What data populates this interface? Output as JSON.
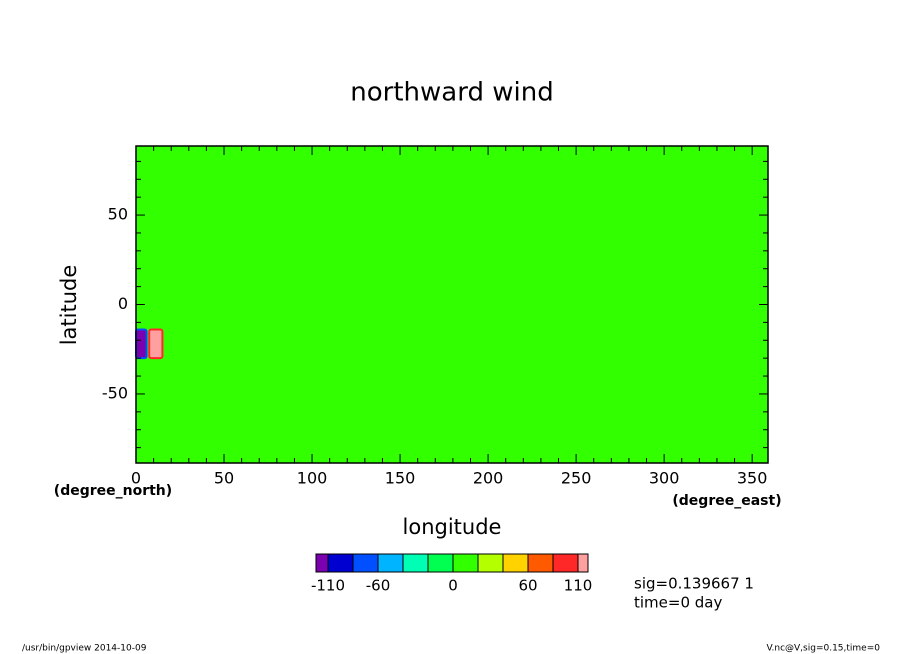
{
  "chart_data": {
    "type": "contour",
    "title": "northward wind",
    "x_label": "longitude",
    "y_label": "latitude",
    "x_units": "(degree_east)",
    "y_units": "(degree_north)",
    "xlim": [
      0,
      359
    ],
    "ylim": [
      -88.6,
      88.6
    ],
    "xticks": [
      0,
      50,
      100,
      150,
      200,
      250,
      300,
      350
    ],
    "yticks": [
      -50,
      0,
      50
    ],
    "xminorticks": [
      10,
      20,
      30,
      40,
      60,
      70,
      80,
      90,
      110,
      120,
      130,
      140,
      160,
      170,
      180,
      190,
      210,
      220,
      230,
      240,
      260,
      270,
      280,
      290,
      310,
      320,
      330,
      340
    ],
    "yminorticks": [
      -80,
      -70,
      -60,
      -40,
      -30,
      -20,
      -10,
      10,
      20,
      30,
      40,
      60,
      70,
      80
    ],
    "background_value": 0,
    "cells": [
      {
        "lon": [
          0,
          6
        ],
        "lat": [
          -30,
          -14
        ],
        "value": -120
      },
      {
        "lon": [
          7.5,
          15
        ],
        "lat": [
          -30,
          -14
        ],
        "value": 120
      }
    ],
    "colorbar": {
      "colors": [
        "#7a00b0",
        "#0000d0",
        "#0050ff",
        "#00b4ff",
        "#00ffb4",
        "#00ff50",
        "#32ff00",
        "#b4ff00",
        "#ffd200",
        "#ff5a00",
        "#ff2828",
        "#ffa0a0"
      ],
      "bounds": [
        -110,
        -85,
        -60,
        -40,
        -20,
        0,
        20,
        40,
        60,
        85,
        110
      ],
      "ticks": [
        -110,
        -60,
        0,
        60,
        110
      ]
    },
    "info": [
      "sig=0.139667 1",
      "time=0 day"
    ],
    "footer_left": "/usr/bin/gpview  2014-10-09",
    "footer_right": "V.nc@V,sig=0.15,time=0"
  }
}
